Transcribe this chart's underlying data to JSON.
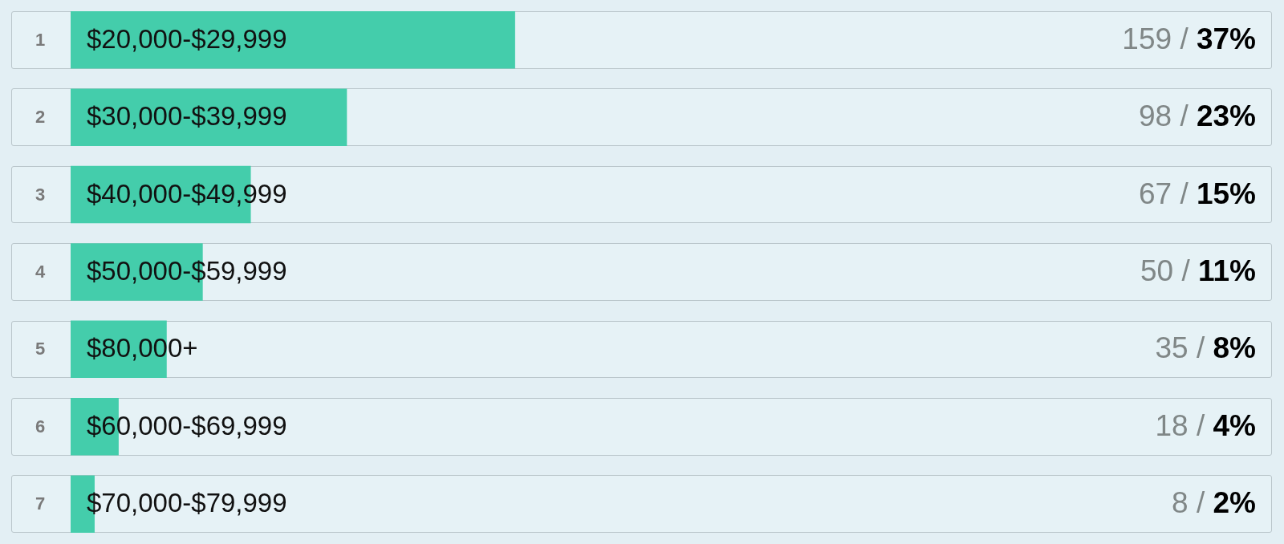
{
  "chart_data": {
    "type": "bar",
    "orientation": "horizontal",
    "categories": [
      "$20,000-$29,999",
      "$30,000-$39,999",
      "$40,000-$49,999",
      "$50,000-$59,999",
      "$80,000+",
      "$60,000-$69,999",
      "$70,000-$79,999"
    ],
    "values": [
      37,
      23,
      15,
      11,
      8,
      4,
      2
    ],
    "color": "#44cdab",
    "value_labels": [
      "37%",
      "23%",
      "15%",
      "11%",
      "8%",
      "4%",
      "2%"
    ],
    "annotations": [
      "1",
      "2",
      "3",
      "4",
      "5",
      "6",
      "7",
      "159 /",
      "98 /",
      "67 /",
      "50 /",
      "35 /",
      "18 /",
      "8 /"
    ],
    "tick_labels": "y"
  }
}
